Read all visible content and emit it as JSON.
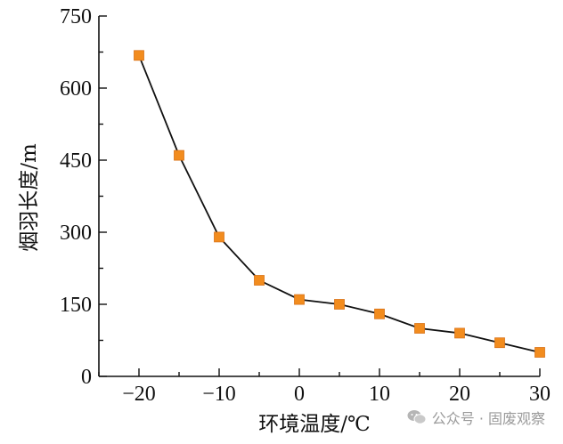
{
  "chart_data": {
    "type": "line",
    "title": "",
    "xlabel": "环境温度/℃",
    "ylabel": "烟羽长度/m",
    "xlim": [
      -25,
      30
    ],
    "ylim": [
      0,
      750
    ],
    "xticks": [
      -20,
      -10,
      0,
      10,
      20,
      30
    ],
    "yticks": [
      0,
      150,
      300,
      450,
      600,
      750
    ],
    "grid": false,
    "series": [
      {
        "marker": "square",
        "line_color": "#111111",
        "marker_color": "#f28c1e",
        "x": [
          -20,
          -15,
          -10,
          -5,
          0,
          5,
          10,
          15,
          20,
          25,
          30
        ],
        "y": [
          668,
          460,
          290,
          200,
          160,
          150,
          130,
          100,
          90,
          70,
          50
        ]
      }
    ]
  },
  "watermark": {
    "text": "公众号 · 固废观察",
    "icon": "wechat-icon"
  }
}
